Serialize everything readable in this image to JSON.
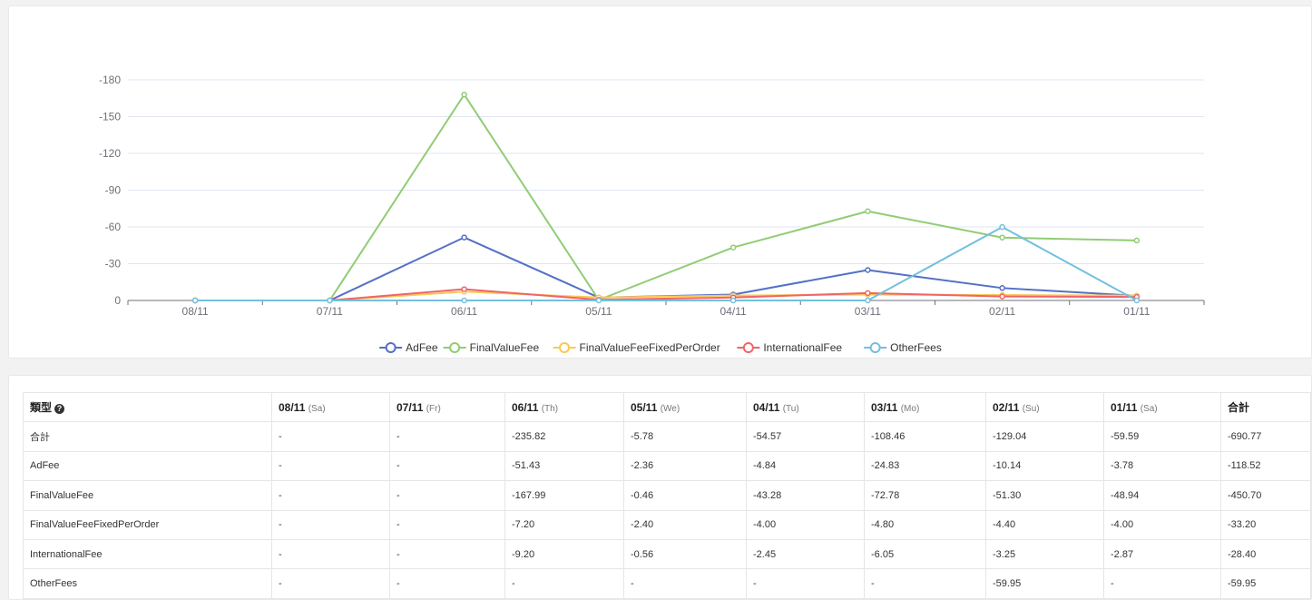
{
  "chart_data": {
    "type": "line",
    "categories": [
      "08/11",
      "07/11",
      "06/11",
      "05/11",
      "04/11",
      "03/11",
      "02/11",
      "01/11"
    ],
    "y_ticks": [
      "-180",
      "-150",
      "-120",
      "-90",
      "-60",
      "-30",
      "0"
    ],
    "ylim": [
      0,
      -180
    ],
    "y_inverted": true,
    "grid": true,
    "legend_position": "bottom",
    "series": [
      {
        "name": "AdFee",
        "color": "#5470c6",
        "values": [
          0,
          0,
          -51.43,
          -2.36,
          -4.84,
          -24.83,
          -10.14,
          -3.78
        ]
      },
      {
        "name": "FinalValueFee",
        "color": "#91cc75",
        "values": [
          0,
          0,
          -167.99,
          -0.46,
          -43.28,
          -72.78,
          -51.3,
          -48.94
        ]
      },
      {
        "name": "FinalValueFeeFixedPerOrder",
        "color": "#fac858",
        "values": [
          0,
          0,
          -7.2,
          -2.4,
          -4.0,
          -4.8,
          -4.4,
          -4.0
        ]
      },
      {
        "name": "InternationalFee",
        "color": "#ee6666",
        "values": [
          0,
          0,
          -9.2,
          -0.56,
          -2.45,
          -6.05,
          -3.25,
          -2.87
        ]
      },
      {
        "name": "OtherFees",
        "color": "#73c0de",
        "values": [
          0,
          0,
          0,
          0,
          0,
          0,
          -59.95,
          0
        ]
      }
    ]
  },
  "table": {
    "type_header": "類型",
    "total_header": "合計",
    "date_headers": [
      {
        "date": "08/11",
        "dow": "(Sa)"
      },
      {
        "date": "07/11",
        "dow": "(Fr)"
      },
      {
        "date": "06/11",
        "dow": "(Th)"
      },
      {
        "date": "05/11",
        "dow": "(We)"
      },
      {
        "date": "04/11",
        "dow": "(Tu)"
      },
      {
        "date": "03/11",
        "dow": "(Mo)"
      },
      {
        "date": "02/11",
        "dow": "(Su)"
      },
      {
        "date": "01/11",
        "dow": "(Sa)"
      }
    ],
    "rows": [
      {
        "label": "合計",
        "cells": [
          "-",
          "-",
          "-235.82",
          "-5.78",
          "-54.57",
          "-108.46",
          "-129.04",
          "-59.59",
          "-690.77"
        ]
      },
      {
        "label": "AdFee",
        "cells": [
          "-",
          "-",
          "-51.43",
          "-2.36",
          "-4.84",
          "-24.83",
          "-10.14",
          "-3.78",
          "-118.52"
        ]
      },
      {
        "label": "FinalValueFee",
        "cells": [
          "-",
          "-",
          "-167.99",
          "-0.46",
          "-43.28",
          "-72.78",
          "-51.30",
          "-48.94",
          "-450.70"
        ]
      },
      {
        "label": "FinalValueFeeFixedPerOrder",
        "cells": [
          "-",
          "-",
          "-7.20",
          "-2.40",
          "-4.00",
          "-4.80",
          "-4.40",
          "-4.00",
          "-33.20"
        ]
      },
      {
        "label": "InternationalFee",
        "cells": [
          "-",
          "-",
          "-9.20",
          "-0.56",
          "-2.45",
          "-6.05",
          "-3.25",
          "-2.87",
          "-28.40"
        ]
      },
      {
        "label": "OtherFees",
        "cells": [
          "-",
          "-",
          "-",
          "-",
          "-",
          "-",
          "-59.95",
          "-",
          "-59.95"
        ]
      }
    ]
  }
}
